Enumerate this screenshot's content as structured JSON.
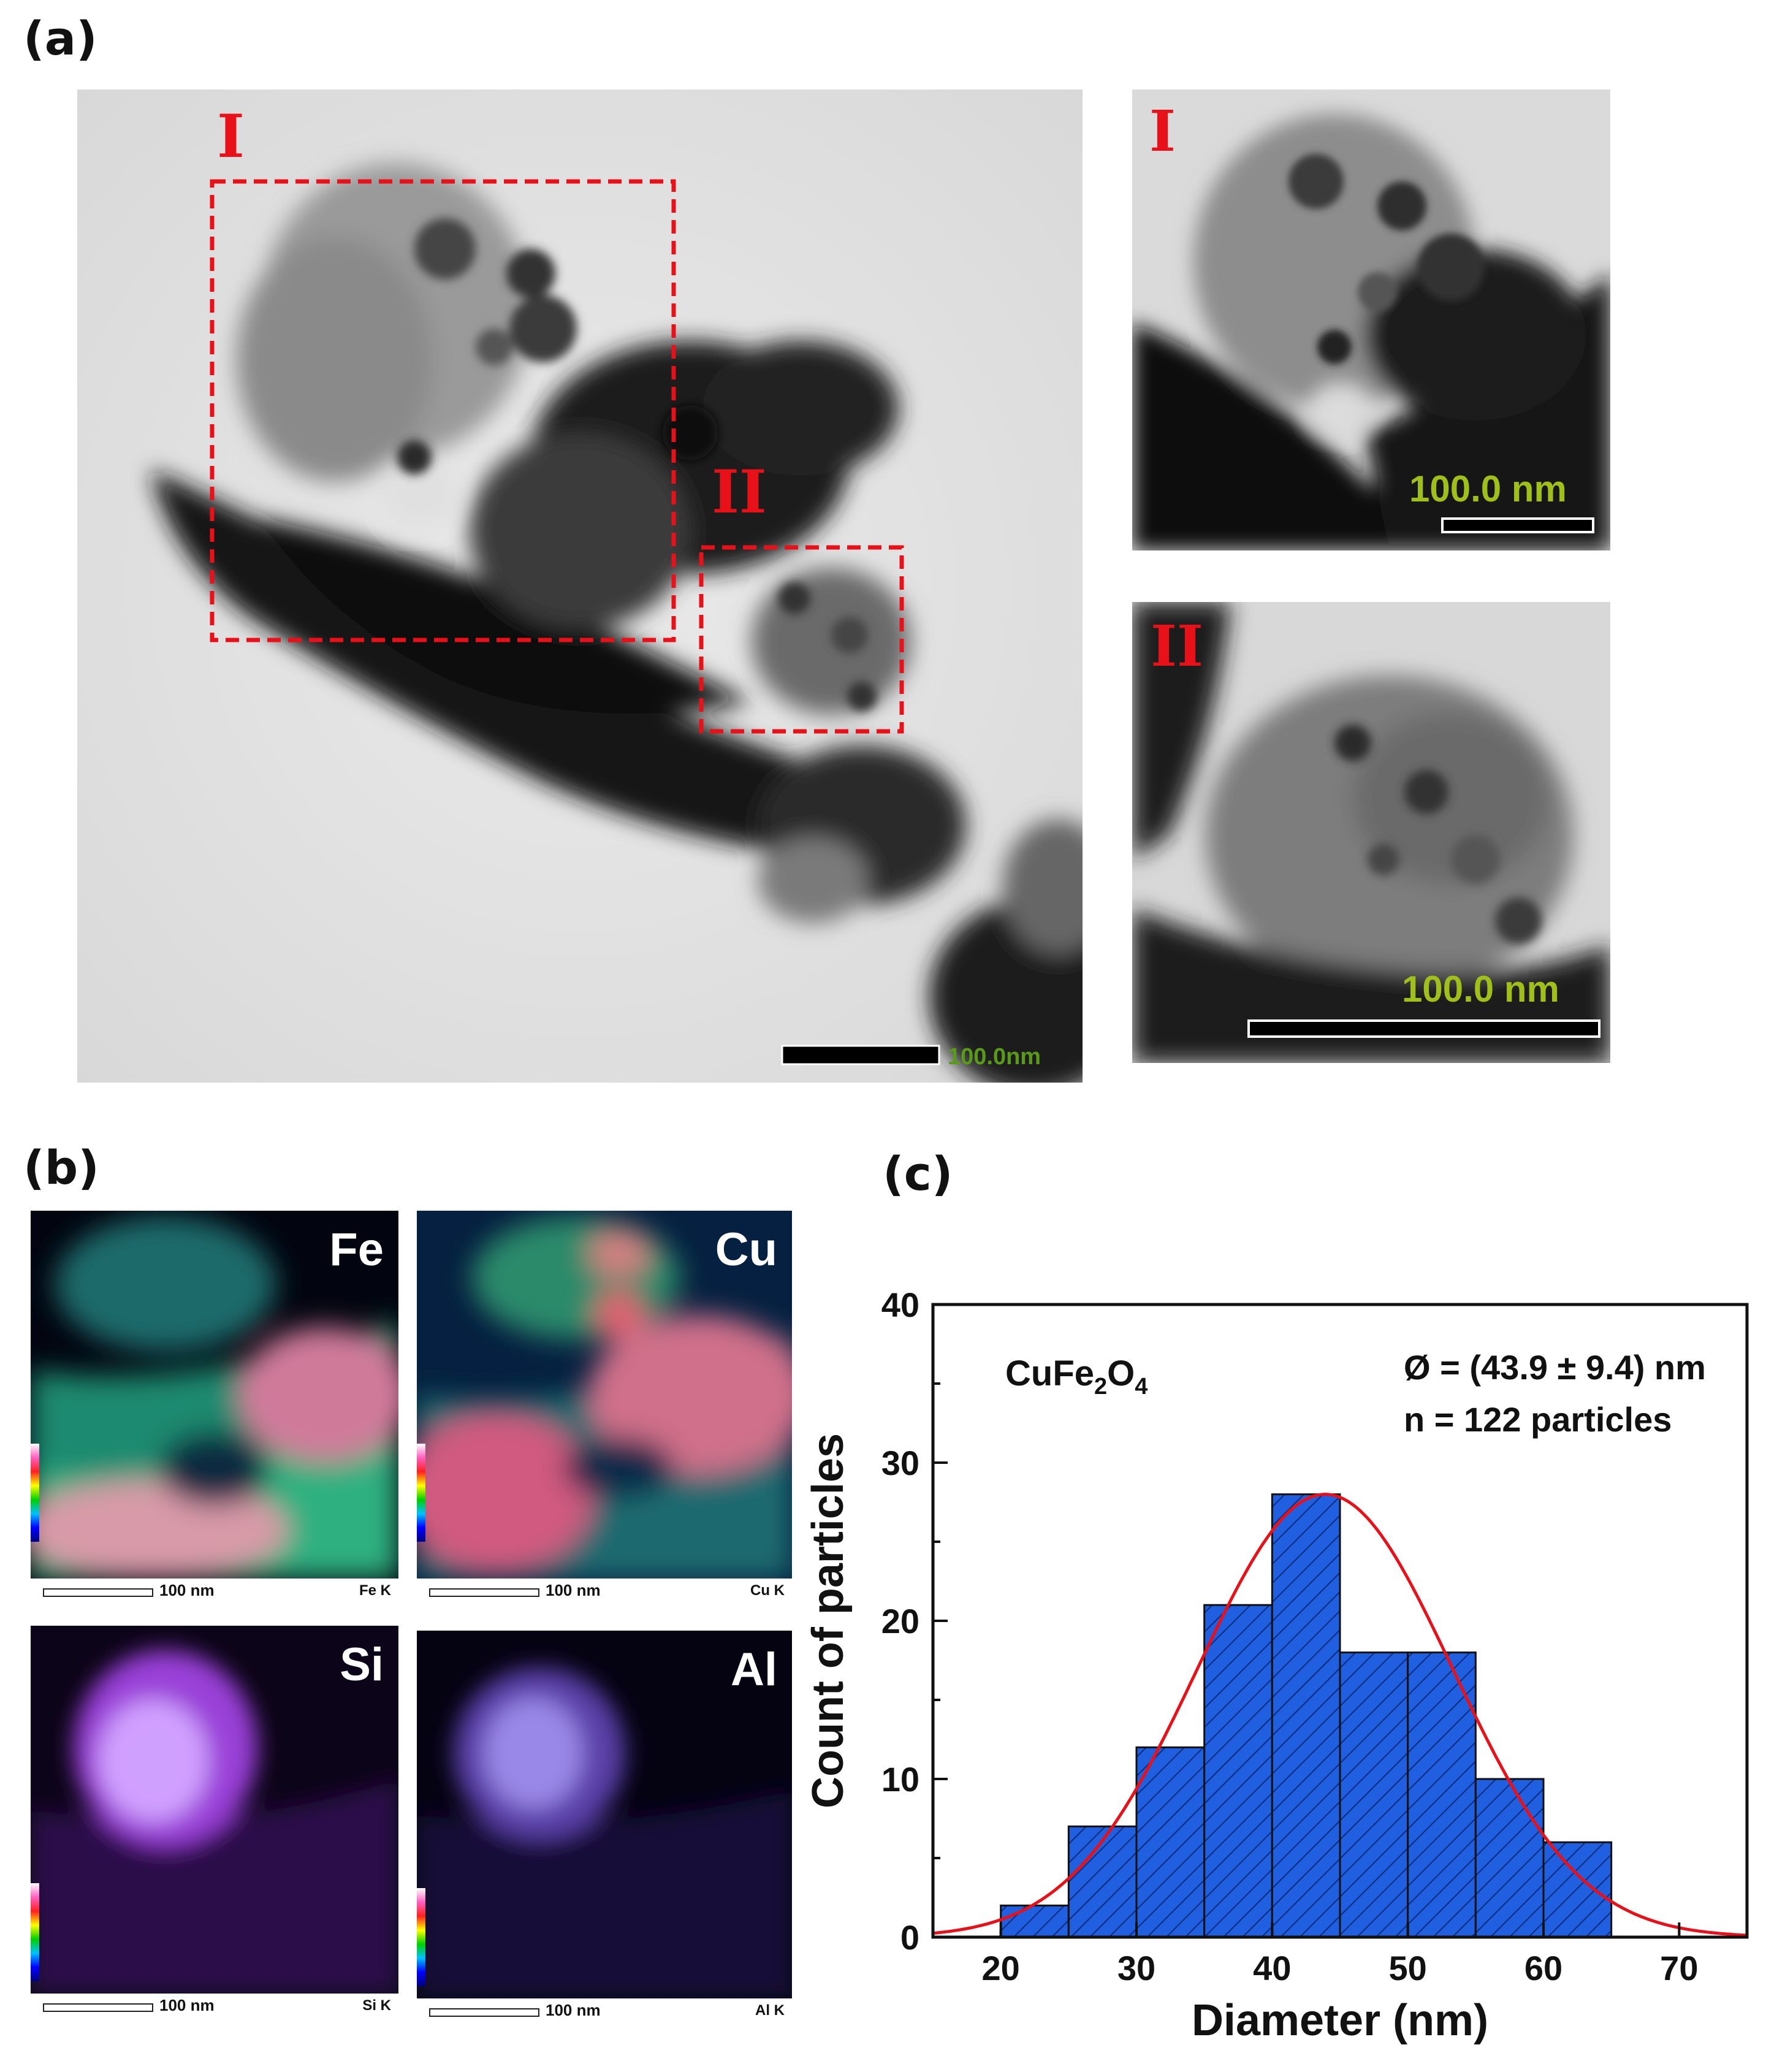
{
  "panels": {
    "a": "(a)",
    "b": "(b)",
    "c": "(c)"
  },
  "tem": {
    "main_scale": "100.0nm",
    "region_I": "I",
    "region_II": "II",
    "inset_I_scale": "100.0 nm",
    "inset_II_scale": "100.0 nm"
  },
  "eds": [
    {
      "element": "Fe",
      "scale": "100 nm",
      "line": "Fe K"
    },
    {
      "element": "Cu",
      "scale": "100 nm",
      "line": "Cu K"
    },
    {
      "element": "Si",
      "scale": "100 nm",
      "line": "Si K"
    },
    {
      "element": "Al",
      "scale": "100 nm",
      "line": "Al K"
    }
  ],
  "colors": {
    "region_box": "#e8111a",
    "bar_fill": "#1f5fe0",
    "fit_curve": "#e8111a",
    "scale_text_green": "#9fbf1a"
  },
  "chart_data": {
    "type": "bar",
    "title": "",
    "xlabel": "Diameter (nm)",
    "ylabel": "Count of particles",
    "xlim": [
      15,
      75
    ],
    "ylim": [
      0,
      40
    ],
    "xticks": [
      20,
      30,
      40,
      50,
      60,
      70
    ],
    "yticks": [
      0,
      10,
      20,
      30,
      40
    ],
    "bins": [
      {
        "from": 20,
        "to": 25,
        "count": 2
      },
      {
        "from": 25,
        "to": 30,
        "count": 7
      },
      {
        "from": 30,
        "to": 35,
        "count": 12
      },
      {
        "from": 35,
        "to": 40,
        "count": 21
      },
      {
        "from": 40,
        "to": 45,
        "count": 28
      },
      {
        "from": 45,
        "to": 50,
        "count": 18
      },
      {
        "from": 50,
        "to": 55,
        "count": 18
      },
      {
        "from": 55,
        "to": 60,
        "count": 10
      },
      {
        "from": 60,
        "to": 65,
        "count": 6
      }
    ],
    "fit": {
      "type": "gaussian",
      "mean": 43.9,
      "sd": 9.4,
      "peak": 28
    },
    "annotations": {
      "sample_main": "CuFe",
      "sample_sub1": "2",
      "sample_mid": "O",
      "sample_sub2": "4",
      "diameter": "Ø = (43.9 ± 9.4) nm",
      "count": "n = 122 particles"
    },
    "grid": false
  }
}
